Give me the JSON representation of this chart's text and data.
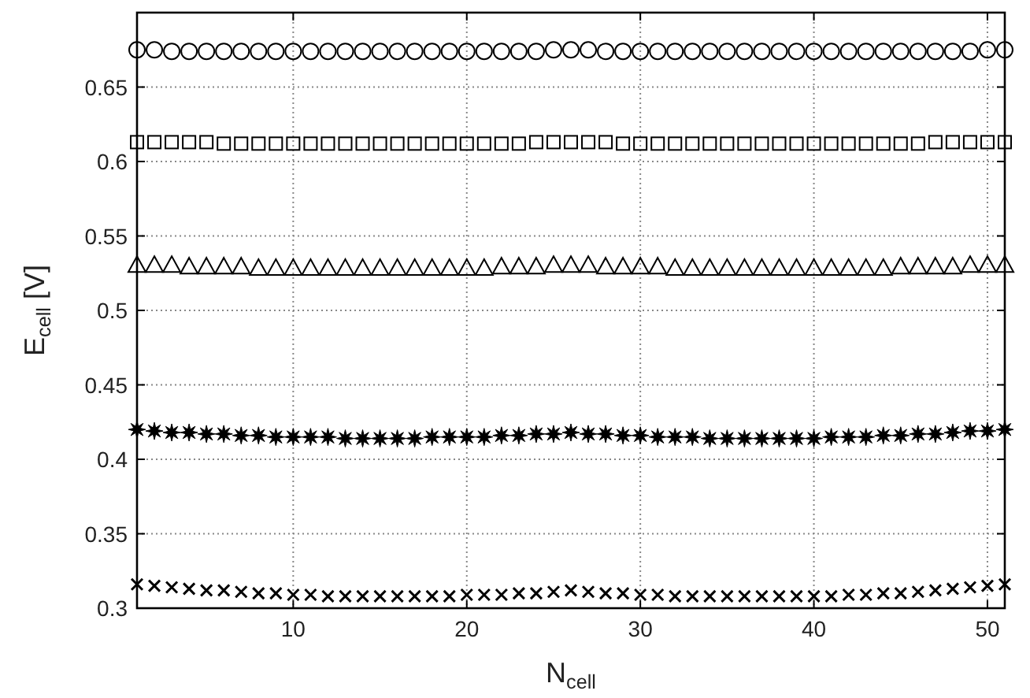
{
  "chart_data": {
    "type": "scatter",
    "xlabel": "N$_{cell}$",
    "ylabel": "E$_{cell}$ [V]",
    "x": [
      1,
      2,
      3,
      4,
      5,
      6,
      7,
      8,
      9,
      10,
      11,
      12,
      13,
      14,
      15,
      16,
      17,
      18,
      19,
      20,
      21,
      22,
      23,
      24,
      25,
      26,
      27,
      28,
      29,
      30,
      31,
      32,
      33,
      34,
      35,
      36,
      37,
      38,
      39,
      40,
      41,
      42,
      43,
      44,
      45,
      46,
      47,
      48,
      49,
      50,
      51
    ],
    "xlim": [
      1,
      51
    ],
    "xticks": [
      10,
      20,
      30,
      40,
      50
    ],
    "ylim": [
      0.3,
      0.7
    ],
    "yticks": [
      0.3,
      0.35,
      0.4,
      0.45,
      0.5,
      0.55,
      0.6,
      0.65
    ],
    "grid": true,
    "series": [
      {
        "color": "#000000",
        "marker": "circle",
        "values": [
          0.675,
          0.675,
          0.674,
          0.674,
          0.674,
          0.674,
          0.674,
          0.674,
          0.674,
          0.674,
          0.674,
          0.674,
          0.674,
          0.674,
          0.674,
          0.674,
          0.674,
          0.674,
          0.674,
          0.674,
          0.674,
          0.674,
          0.674,
          0.674,
          0.675,
          0.675,
          0.675,
          0.674,
          0.674,
          0.674,
          0.674,
          0.674,
          0.674,
          0.674,
          0.674,
          0.674,
          0.674,
          0.674,
          0.674,
          0.674,
          0.674,
          0.674,
          0.674,
          0.674,
          0.674,
          0.674,
          0.674,
          0.674,
          0.674,
          0.675,
          0.675
        ]
      },
      {
        "color": "#000000",
        "marker": "square",
        "values": [
          0.613,
          0.613,
          0.613,
          0.613,
          0.613,
          0.612,
          0.612,
          0.612,
          0.612,
          0.612,
          0.612,
          0.612,
          0.612,
          0.612,
          0.612,
          0.612,
          0.612,
          0.612,
          0.612,
          0.612,
          0.612,
          0.612,
          0.612,
          0.613,
          0.613,
          0.613,
          0.613,
          0.613,
          0.612,
          0.612,
          0.612,
          0.612,
          0.612,
          0.612,
          0.612,
          0.612,
          0.612,
          0.612,
          0.612,
          0.612,
          0.612,
          0.612,
          0.612,
          0.612,
          0.612,
          0.612,
          0.613,
          0.613,
          0.613,
          0.613,
          0.613
        ]
      },
      {
        "color": "#000000",
        "marker": "triangle",
        "values": [
          0.53,
          0.53,
          0.53,
          0.529,
          0.529,
          0.529,
          0.529,
          0.528,
          0.528,
          0.528,
          0.528,
          0.528,
          0.528,
          0.528,
          0.528,
          0.528,
          0.528,
          0.528,
          0.528,
          0.528,
          0.528,
          0.529,
          0.529,
          0.529,
          0.53,
          0.53,
          0.53,
          0.529,
          0.529,
          0.529,
          0.529,
          0.528,
          0.528,
          0.528,
          0.528,
          0.528,
          0.528,
          0.528,
          0.528,
          0.528,
          0.528,
          0.528,
          0.528,
          0.528,
          0.529,
          0.529,
          0.529,
          0.529,
          0.53,
          0.53,
          0.53
        ]
      },
      {
        "color": "#000000",
        "marker": "star",
        "values": [
          0.42,
          0.419,
          0.418,
          0.418,
          0.417,
          0.417,
          0.416,
          0.416,
          0.415,
          0.415,
          0.415,
          0.415,
          0.414,
          0.414,
          0.414,
          0.414,
          0.414,
          0.415,
          0.415,
          0.415,
          0.415,
          0.416,
          0.416,
          0.417,
          0.417,
          0.418,
          0.417,
          0.417,
          0.416,
          0.416,
          0.415,
          0.415,
          0.415,
          0.414,
          0.414,
          0.414,
          0.414,
          0.414,
          0.414,
          0.414,
          0.415,
          0.415,
          0.415,
          0.416,
          0.416,
          0.417,
          0.417,
          0.418,
          0.419,
          0.419,
          0.42
        ]
      },
      {
        "color": "#000000",
        "marker": "cross",
        "values": [
          0.316,
          0.315,
          0.314,
          0.313,
          0.312,
          0.312,
          0.311,
          0.31,
          0.31,
          0.309,
          0.309,
          0.308,
          0.308,
          0.308,
          0.308,
          0.308,
          0.308,
          0.308,
          0.308,
          0.309,
          0.309,
          0.309,
          0.31,
          0.31,
          0.311,
          0.312,
          0.311,
          0.31,
          0.31,
          0.309,
          0.309,
          0.308,
          0.308,
          0.308,
          0.308,
          0.308,
          0.308,
          0.308,
          0.308,
          0.308,
          0.308,
          0.309,
          0.309,
          0.31,
          0.31,
          0.311,
          0.312,
          0.313,
          0.314,
          0.315,
          0.316
        ]
      }
    ]
  }
}
